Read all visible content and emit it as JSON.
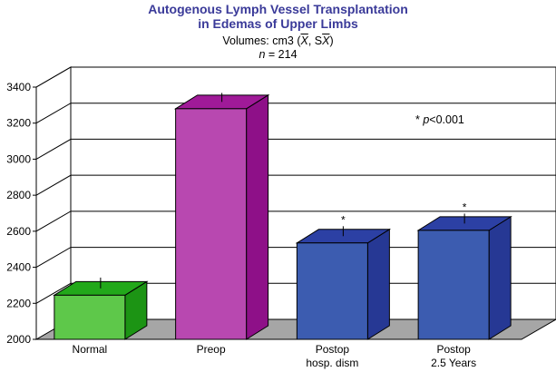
{
  "chart_data": {
    "type": "bar",
    "title_line1": "Autogenous Lymph Vessel Transplantation",
    "title_line2": "in Edemas of Upper Limbs",
    "subtitle_prefix": "Volumes: cm3 (",
    "subtitle_x": "X",
    "subtitle_mid": ", S",
    "subtitle_sx": "X",
    "subtitle_suffix": ")",
    "n_label_var": "n",
    "n_label_rest": " = 214",
    "categories": [
      {
        "line1": "Normal",
        "line2": ""
      },
      {
        "line1": "Preop",
        "line2": ""
      },
      {
        "line1": "Postop",
        "line2": "hosp. dism"
      },
      {
        "line1": "Postop",
        "line2": "2.5 Years"
      }
    ],
    "values": [
      2245,
      3280,
      2535,
      2605
    ],
    "errors": [
      60,
      50,
      55,
      55
    ],
    "significance": [
      "",
      "",
      "*",
      "*"
    ],
    "annotation_star": "* ",
    "annotation_p": "p",
    "annotation_rest": "<0.001",
    "yticks": [
      2000,
      2200,
      2400,
      2600,
      2800,
      3000,
      3200,
      3400
    ],
    "ylim": [
      2000,
      3400
    ],
    "grid": true,
    "xlabel": "",
    "ylabel": "",
    "colors": {
      "bars": [
        {
          "front": "#5ec84a",
          "top": "#22a81a",
          "side": "#1c9414"
        },
        {
          "front": "#b848b0",
          "top": "#a01a98",
          "side": "#8e1088"
        },
        {
          "front": "#3c5cb0",
          "top": "#2c40a4",
          "side": "#263894"
        },
        {
          "front": "#3c5cb0",
          "top": "#2c40a4",
          "side": "#263894"
        }
      ],
      "floor": "#a6a6a6",
      "title": "#3a3a99"
    }
  }
}
